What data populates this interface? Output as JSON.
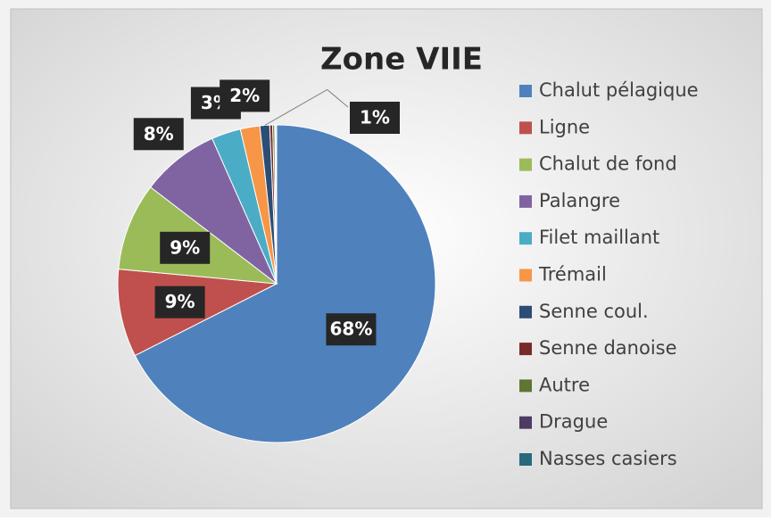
{
  "chart_data": {
    "type": "pie",
    "title": "Zone VIIE",
    "categories": [
      "Chalut pélagique",
      "Ligne",
      "Chalut de fond",
      "Palangre",
      "Filet maillant",
      "Trémail",
      "Senne coul.",
      "Senne danoise",
      "Autre",
      "Drague",
      "Nasses casiers"
    ],
    "values": [
      68,
      9,
      9,
      8,
      3,
      2,
      1,
      0.3,
      0.2,
      0.1,
      0.1
    ],
    "value_labels": [
      "68%",
      "9%",
      "9%",
      "8%",
      "3%",
      "2%",
      "1%",
      null,
      null,
      null,
      null
    ],
    "colors": [
      "#4f81bd",
      "#c0504d",
      "#9bbb59",
      "#8064a2",
      "#4bacc6",
      "#f79646",
      "#2c4d75",
      "#772c2a",
      "#5f7530",
      "#4d3b62",
      "#276a7c"
    ],
    "legend": "right"
  }
}
